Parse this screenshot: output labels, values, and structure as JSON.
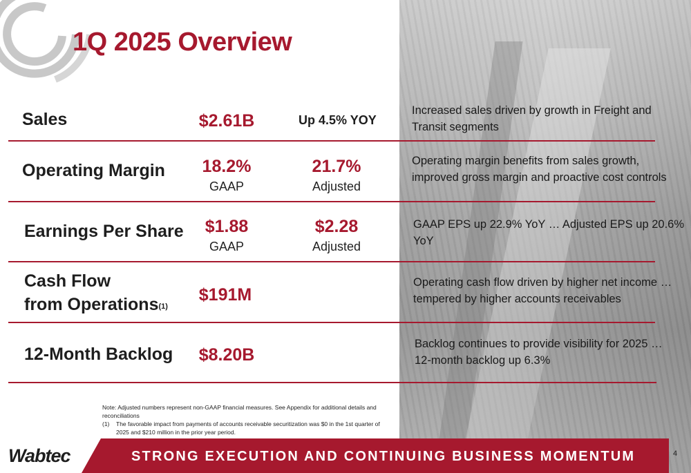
{
  "slide": {
    "title": "1Q 2025 Overview",
    "page_number": "4"
  },
  "rows": {
    "sales": {
      "label": "Sales",
      "value": "$2.61B",
      "yoy": "Up 4.5% YOY",
      "desc_line1": "Increased sales driven by growth in Freight and",
      "desc_line2": "Transit segments"
    },
    "operating_margin": {
      "label": "Operating Margin",
      "gaap_value": "18.2%",
      "gaap_label": "GAAP",
      "adjusted_value": "21.7%",
      "adjusted_label": "Adjusted",
      "desc_line1": "Operating margin benefits from sales growth,",
      "desc_line2": "improved gross margin and proactive cost controls"
    },
    "eps": {
      "label": "Earnings Per Share",
      "gaap_value": "$1.88",
      "gaap_label": "GAAP",
      "adjusted_value": "$2.28",
      "adjusted_label": "Adjusted",
      "desc_line1": "GAAP EPS up 22.9% YoY … Adjusted EPS up 20.6%",
      "desc_line2": "YoY"
    },
    "cash_flow": {
      "label_line1": "Cash Flow",
      "label_line2": "from Operations",
      "footnote_ref": "(1)",
      "value": "$191M",
      "desc_line1": "Operating cash flow driven by higher net income …",
      "desc_line2": "tempered by higher accounts receivables"
    },
    "backlog": {
      "label": "12-Month Backlog",
      "value": "$8.20B",
      "desc_line1": "Backlog continues to provide visibility for 2025 …",
      "desc_line2": "12-month backlog up 6.3%"
    }
  },
  "notes": {
    "note_line": "Note:  Adjusted numbers represent non-GAAP financial measures. See Appendix for additional details and reconciliations",
    "footnote_key": "(1)",
    "footnote_text": "The favorable impact from payments of accounts receivable securitization was $0 in the 1st quarter of 2025 and $210 million in the prior year period."
  },
  "footer": {
    "brand": "Wabtec",
    "banner": "STRONG EXECUTION AND CONTINUING BUSINESS MOMENTUM"
  },
  "colors": {
    "accent": "#a6192e",
    "text": "#1e1e1e"
  }
}
